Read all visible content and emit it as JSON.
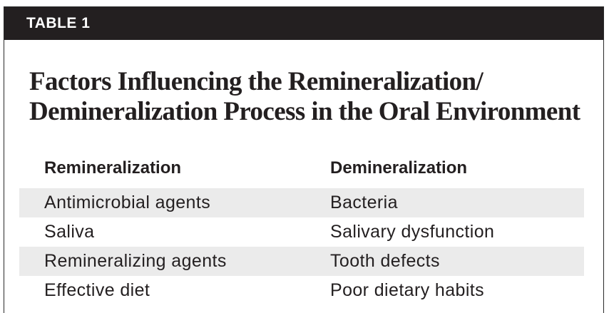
{
  "header": {
    "label": "TABLE 1"
  },
  "title": {
    "line1": "Factors Influencing the Remineralization/",
    "line2": "Demineralization Process in the Oral Environment"
  },
  "table": {
    "columns": [
      "Remineralization",
      "Demineralization"
    ],
    "rows": [
      [
        "Antimicrobial agents",
        "Bacteria"
      ],
      [
        "Saliva",
        "Salivary dysfunction"
      ],
      [
        "Remineralizing agents",
        "Tooth defects"
      ],
      [
        "Effective diet",
        "Poor dietary habits"
      ]
    ]
  },
  "colors": {
    "header_bg": "#231f20",
    "row_shade": "#ebebeb",
    "text": "#231f20"
  }
}
